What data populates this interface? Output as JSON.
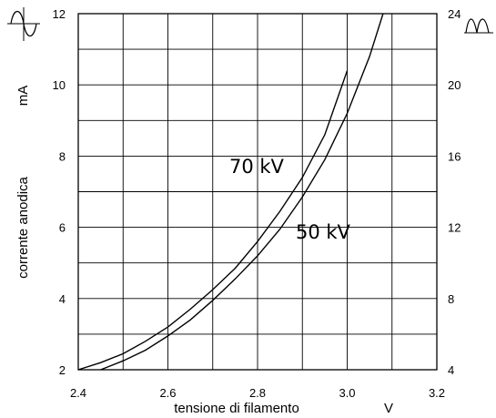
{
  "chart_data": {
    "type": "line",
    "xlabel": "tensione di filamento",
    "xunit": "V",
    "ylabel": "corrente anodica",
    "yunit": "mA",
    "xlim": [
      2.4,
      3.2
    ],
    "ylim": [
      2,
      12
    ],
    "y2lim": [
      4,
      24
    ],
    "x_ticks": [
      "2.4",
      "2.6",
      "2.8",
      "3.0",
      "3.2"
    ],
    "y_ticks": [
      "2",
      "4",
      "6",
      "8",
      "10",
      "12"
    ],
    "y2_ticks": [
      "4",
      "8",
      "12",
      "16",
      "20",
      "24"
    ],
    "grid": true,
    "series": [
      {
        "name": "70 kV",
        "x": [
          2.4,
          2.45,
          2.5,
          2.55,
          2.6,
          2.65,
          2.7,
          2.75,
          2.8,
          2.85,
          2.9,
          2.95,
          3.0
        ],
        "y": [
          2.0,
          2.2,
          2.45,
          2.8,
          3.2,
          3.7,
          4.25,
          4.85,
          5.6,
          6.45,
          7.4,
          8.6,
          10.4
        ]
      },
      {
        "name": "50 kV",
        "x": [
          2.45,
          2.5,
          2.55,
          2.6,
          2.65,
          2.7,
          2.75,
          2.8,
          2.85,
          2.9,
          2.95,
          3.0,
          3.05,
          3.08
        ],
        "y": [
          2.0,
          2.25,
          2.55,
          2.95,
          3.4,
          3.95,
          4.55,
          5.2,
          5.95,
          6.85,
          7.9,
          9.2,
          10.8,
          12.0
        ]
      }
    ],
    "curve_labels": [
      "70 kV",
      "50 kV"
    ],
    "wave_icons": [
      "sine-wave-icon",
      "rectified-wave-icon"
    ]
  }
}
